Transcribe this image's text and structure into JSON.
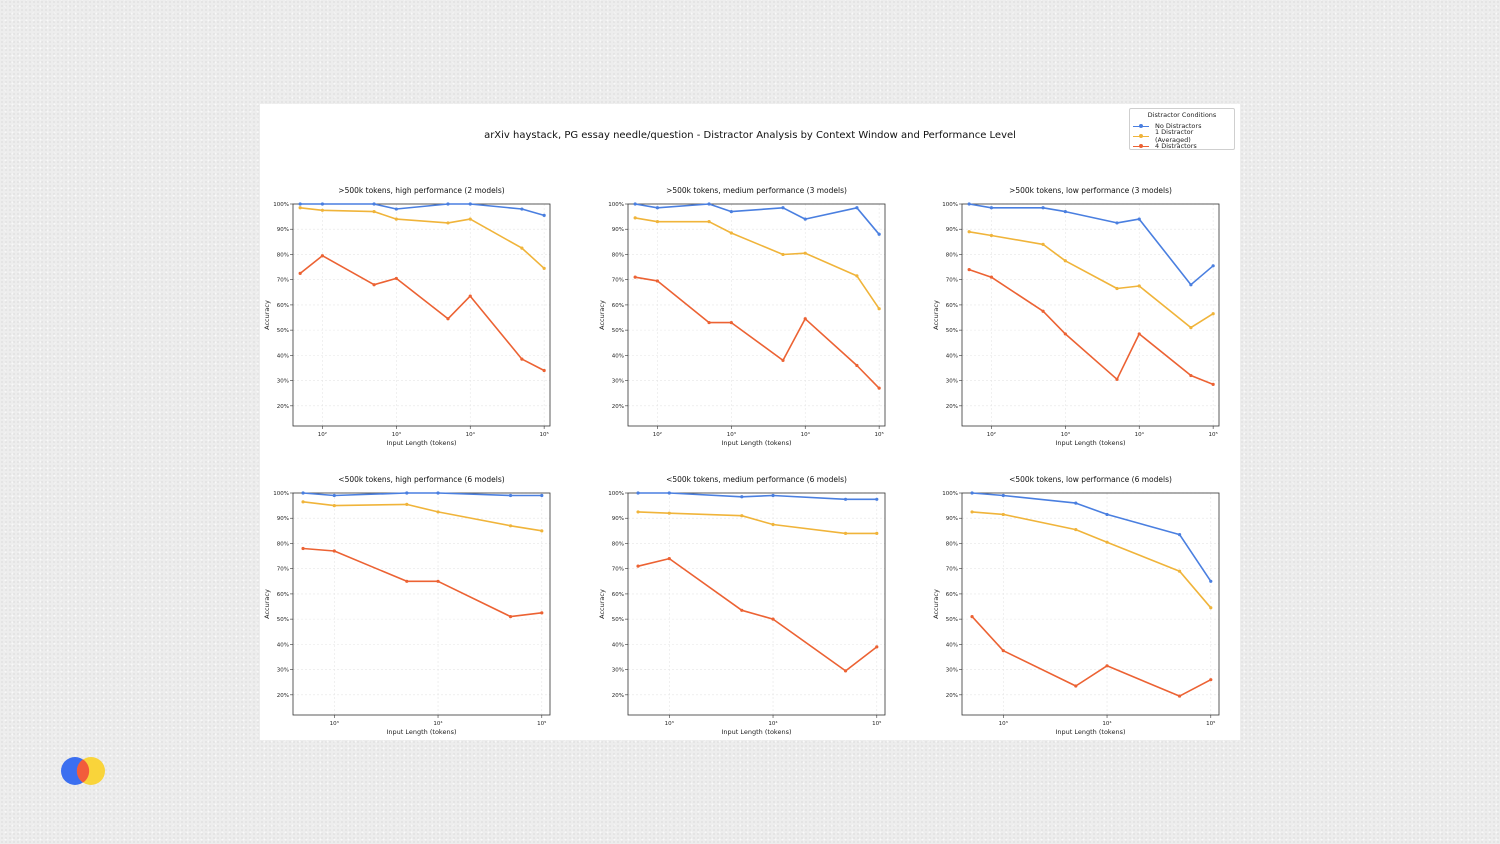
{
  "slide": {
    "title": "arXiv haystack, PG essay needle/question - Distractor Analysis by Context Window and Performance Level"
  },
  "legend": {
    "title": "Distractor Conditions",
    "items": [
      {
        "label": "No Distractors",
        "color": "#4a7fe0"
      },
      {
        "label": "1 Distractor (Averaged)",
        "color": "#f0b43a"
      },
      {
        "label": "4 Distractors",
        "color": "#ec6233"
      }
    ]
  },
  "logo": {
    "icon": "brand-logo-icon",
    "colors": [
      "#3b6ff0",
      "#f25c3b",
      "#f9d43a"
    ]
  },
  "chart_data": [
    {
      "type": "line",
      "title": ">500k tokens, high performance (2 models)",
      "xlabel": "Input Length (tokens)",
      "ylabel": "Accuracy",
      "xscale": "log",
      "xlim": [
        40,
        120000
      ],
      "ylim": [
        0.12,
        1.0
      ],
      "xticks": [
        {
          "v": 100,
          "label": "10²"
        },
        {
          "v": 1000,
          "label": "10³"
        },
        {
          "v": 10000,
          "label": "10⁴"
        },
        {
          "v": 100000,
          "label": "10⁵"
        }
      ],
      "yticks": [
        {
          "v": 0.2,
          "label": "20%"
        },
        {
          "v": 0.3,
          "label": "30%"
        },
        {
          "v": 0.4,
          "label": "40%"
        },
        {
          "v": 0.5,
          "label": "50%"
        },
        {
          "v": 0.6,
          "label": "60%"
        },
        {
          "v": 0.7,
          "label": "70%"
        },
        {
          "v": 0.8,
          "label": "80%"
        },
        {
          "v": 0.9,
          "label": "90%"
        },
        {
          "v": 1.0,
          "label": "100%"
        }
      ],
      "x": [
        50,
        100,
        500,
        1000,
        5000,
        10000,
        50000,
        100000
      ],
      "series": [
        {
          "name": "No Distractors",
          "values": [
            1.0,
            1.0,
            1.0,
            0.98,
            1.0,
            1.0,
            0.98,
            0.955
          ]
        },
        {
          "name": "1 Distractor (Averaged)",
          "values": [
            0.985,
            0.975,
            0.97,
            0.94,
            0.925,
            0.94,
            0.825,
            0.745
          ]
        },
        {
          "name": "4 Distractors",
          "values": [
            0.725,
            0.795,
            0.68,
            0.705,
            0.545,
            0.635,
            0.385,
            0.34
          ]
        }
      ]
    },
    {
      "type": "line",
      "title": ">500k tokens, medium performance (3 models)",
      "xlabel": "Input Length (tokens)",
      "ylabel": "Accuracy",
      "xscale": "log",
      "xlim": [
        40,
        120000
      ],
      "ylim": [
        0.12,
        1.0
      ],
      "xticks": [
        {
          "v": 100,
          "label": "10²"
        },
        {
          "v": 1000,
          "label": "10³"
        },
        {
          "v": 10000,
          "label": "10⁴"
        },
        {
          "v": 100000,
          "label": "10⁵"
        }
      ],
      "yticks": [
        {
          "v": 0.2,
          "label": "20%"
        },
        {
          "v": 0.3,
          "label": "30%"
        },
        {
          "v": 0.4,
          "label": "40%"
        },
        {
          "v": 0.5,
          "label": "50%"
        },
        {
          "v": 0.6,
          "label": "60%"
        },
        {
          "v": 0.7,
          "label": "70%"
        },
        {
          "v": 0.8,
          "label": "80%"
        },
        {
          "v": 0.9,
          "label": "90%"
        },
        {
          "v": 1.0,
          "label": "100%"
        }
      ],
      "x": [
        50,
        100,
        500,
        1000,
        5000,
        10000,
        50000,
        100000
      ],
      "series": [
        {
          "name": "No Distractors",
          "values": [
            1.0,
            0.985,
            1.0,
            0.97,
            0.985,
            0.94,
            0.985,
            0.88
          ]
        },
        {
          "name": "1 Distractor (Averaged)",
          "values": [
            0.945,
            0.93,
            0.93,
            0.885,
            0.8,
            0.805,
            0.715,
            0.585
          ]
        },
        {
          "name": "4 Distractors",
          "values": [
            0.71,
            0.695,
            0.53,
            0.53,
            0.38,
            0.545,
            0.36,
            0.27
          ]
        }
      ]
    },
    {
      "type": "line",
      "title": ">500k tokens, low performance (3 models)",
      "xlabel": "Input Length (tokens)",
      "ylabel": "Accuracy",
      "xscale": "log",
      "xlim": [
        40,
        120000
      ],
      "ylim": [
        0.12,
        1.0
      ],
      "xticks": [
        {
          "v": 100,
          "label": "10²"
        },
        {
          "v": 1000,
          "label": "10³"
        },
        {
          "v": 10000,
          "label": "10⁴"
        },
        {
          "v": 100000,
          "label": "10⁵"
        }
      ],
      "yticks": [
        {
          "v": 0.2,
          "label": "20%"
        },
        {
          "v": 0.3,
          "label": "30%"
        },
        {
          "v": 0.4,
          "label": "40%"
        },
        {
          "v": 0.5,
          "label": "50%"
        },
        {
          "v": 0.6,
          "label": "60%"
        },
        {
          "v": 0.7,
          "label": "70%"
        },
        {
          "v": 0.8,
          "label": "80%"
        },
        {
          "v": 0.9,
          "label": "90%"
        },
        {
          "v": 1.0,
          "label": "100%"
        }
      ],
      "x": [
        50,
        100,
        500,
        1000,
        5000,
        10000,
        50000,
        100000
      ],
      "series": [
        {
          "name": "No Distractors",
          "values": [
            1.0,
            0.985,
            0.985,
            0.97,
            0.925,
            0.94,
            0.68,
            0.755
          ]
        },
        {
          "name": "1 Distractor (Averaged)",
          "values": [
            0.89,
            0.875,
            0.84,
            0.775,
            0.665,
            0.675,
            0.51,
            0.565
          ]
        },
        {
          "name": "4 Distractors",
          "values": [
            0.74,
            0.71,
            0.575,
            0.485,
            0.305,
            0.485,
            0.32,
            0.285
          ]
        }
      ]
    },
    {
      "type": "line",
      "title": "<500k tokens, high performance (6 models)",
      "xlabel": "Input Length (tokens)",
      "ylabel": "Accuracy",
      "xscale": "log",
      "xlim": [
        400,
        120000
      ],
      "ylim": [
        0.12,
        1.0
      ],
      "xticks": [
        {
          "v": 1000,
          "label": "10³"
        },
        {
          "v": 10000,
          "label": "10⁴"
        },
        {
          "v": 100000,
          "label": "10⁵"
        }
      ],
      "yticks": [
        {
          "v": 0.2,
          "label": "20%"
        },
        {
          "v": 0.3,
          "label": "30%"
        },
        {
          "v": 0.4,
          "label": "40%"
        },
        {
          "v": 0.5,
          "label": "50%"
        },
        {
          "v": 0.6,
          "label": "60%"
        },
        {
          "v": 0.7,
          "label": "70%"
        },
        {
          "v": 0.8,
          "label": "80%"
        },
        {
          "v": 0.9,
          "label": "90%"
        },
        {
          "v": 1.0,
          "label": "100%"
        }
      ],
      "x": [
        500,
        1000,
        5000,
        10000,
        50000,
        100000
      ],
      "series": [
        {
          "name": "No Distractors",
          "values": [
            1.0,
            0.99,
            1.0,
            1.0,
            0.99,
            0.99
          ]
        },
        {
          "name": "1 Distractor (Averaged)",
          "values": [
            0.965,
            0.95,
            0.955,
            0.925,
            0.87,
            0.85
          ]
        },
        {
          "name": "4 Distractors",
          "values": [
            0.78,
            0.77,
            0.65,
            0.65,
            0.51,
            0.525
          ]
        }
      ]
    },
    {
      "type": "line",
      "title": "<500k tokens, medium performance (6 models)",
      "xlabel": "Input Length (tokens)",
      "ylabel": "Accuracy",
      "xscale": "log",
      "xlim": [
        400,
        120000
      ],
      "ylim": [
        0.12,
        1.0
      ],
      "xticks": [
        {
          "v": 1000,
          "label": "10³"
        },
        {
          "v": 10000,
          "label": "10⁴"
        },
        {
          "v": 100000,
          "label": "10⁵"
        }
      ],
      "yticks": [
        {
          "v": 0.2,
          "label": "20%"
        },
        {
          "v": 0.3,
          "label": "30%"
        },
        {
          "v": 0.4,
          "label": "40%"
        },
        {
          "v": 0.5,
          "label": "50%"
        },
        {
          "v": 0.6,
          "label": "60%"
        },
        {
          "v": 0.7,
          "label": "70%"
        },
        {
          "v": 0.8,
          "label": "80%"
        },
        {
          "v": 0.9,
          "label": "90%"
        },
        {
          "v": 1.0,
          "label": "100%"
        }
      ],
      "x": [
        500,
        1000,
        5000,
        10000,
        50000,
        100000
      ],
      "series": [
        {
          "name": "No Distractors",
          "values": [
            1.0,
            1.0,
            0.985,
            0.99,
            0.975,
            0.975
          ]
        },
        {
          "name": "1 Distractor (Averaged)",
          "values": [
            0.925,
            0.92,
            0.91,
            0.875,
            0.84,
            0.84
          ]
        },
        {
          "name": "4 Distractors",
          "values": [
            0.71,
            0.74,
            0.535,
            0.5,
            0.295,
            0.39
          ]
        }
      ]
    },
    {
      "type": "line",
      "title": "<500k tokens, low performance (6 models)",
      "xlabel": "Input Length (tokens)",
      "ylabel": "Accuracy",
      "xscale": "log",
      "xlim": [
        400,
        120000
      ],
      "ylim": [
        0.12,
        1.0
      ],
      "xticks": [
        {
          "v": 1000,
          "label": "10³"
        },
        {
          "v": 10000,
          "label": "10⁴"
        },
        {
          "v": 100000,
          "label": "10⁵"
        }
      ],
      "yticks": [
        {
          "v": 0.2,
          "label": "20%"
        },
        {
          "v": 0.3,
          "label": "30%"
        },
        {
          "v": 0.4,
          "label": "40%"
        },
        {
          "v": 0.5,
          "label": "50%"
        },
        {
          "v": 0.6,
          "label": "60%"
        },
        {
          "v": 0.7,
          "label": "70%"
        },
        {
          "v": 0.8,
          "label": "80%"
        },
        {
          "v": 0.9,
          "label": "90%"
        },
        {
          "v": 1.0,
          "label": "100%"
        }
      ],
      "x": [
        500,
        1000,
        5000,
        10000,
        50000,
        100000
      ],
      "series": [
        {
          "name": "No Distractors",
          "values": [
            1.0,
            0.99,
            0.96,
            0.915,
            0.835,
            0.65
          ]
        },
        {
          "name": "1 Distractor (Averaged)",
          "values": [
            0.925,
            0.915,
            0.855,
            0.805,
            0.69,
            0.545
          ]
        },
        {
          "name": "4 Distractors",
          "values": [
            0.51,
            0.375,
            0.235,
            0.315,
            0.195,
            0.26
          ]
        }
      ]
    }
  ]
}
